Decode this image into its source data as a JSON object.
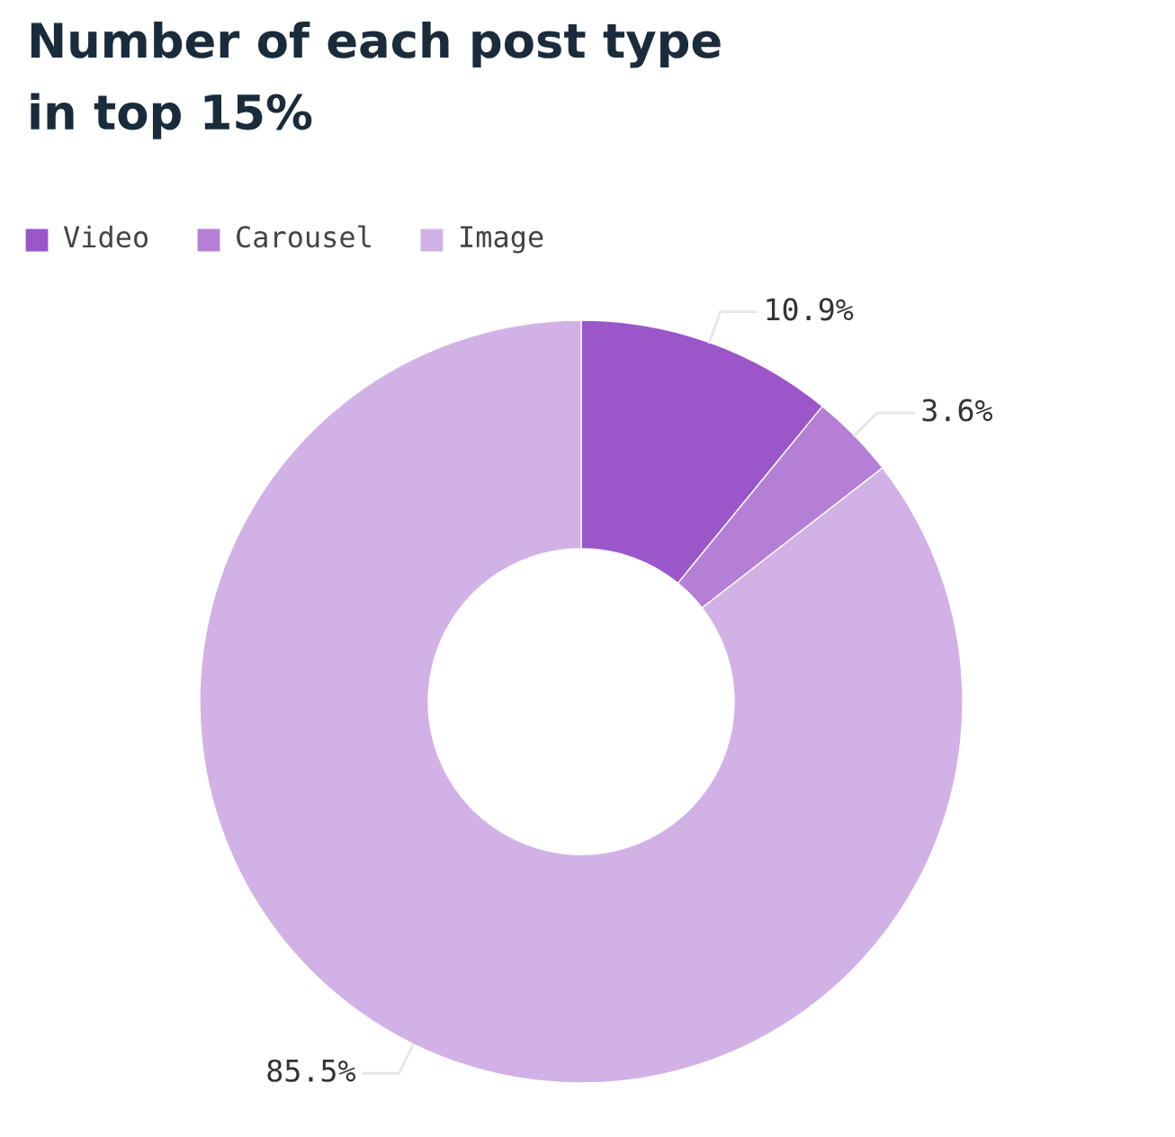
{
  "chart_data": {
    "type": "donut",
    "title": "Number of each post type\nin top 15%",
    "categories": [
      "Video",
      "Carousel",
      "Image"
    ],
    "values": [
      10.9,
      3.6,
      85.5
    ],
    "value_labels": [
      "10.9%",
      "3.6%",
      "85.5%"
    ],
    "colors": [
      "#9b57c9",
      "#b57fd6",
      "#d2b1e6"
    ],
    "legend": "top left"
  }
}
